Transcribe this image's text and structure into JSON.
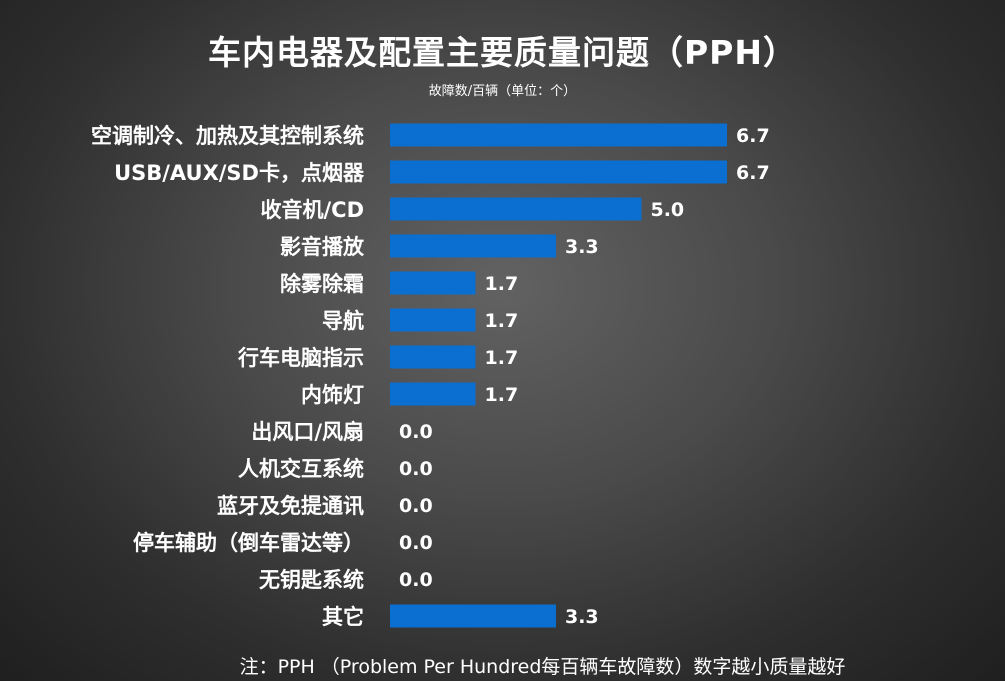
{
  "chart_data": {
    "type": "bar",
    "orientation": "horizontal",
    "title": "车内电器及配置主要质量问题（PPH）",
    "subtitle": "故障数/百辆（单位：个）",
    "categories": [
      "空调制冷、加热及其控制系统",
      "USB/AUX/SD卡，点烟器",
      "收音机/CD",
      "影音播放",
      "除雾除霜",
      "导航",
      "行车电脑指示",
      "内饰灯",
      "出风口/风扇",
      "人机交互系统",
      "蓝牙及免提通讯",
      "停车辅助（倒车雷达等）",
      "无钥匙系统",
      "其它"
    ],
    "values": [
      6.7,
      6.7,
      5.0,
      3.3,
      1.7,
      1.7,
      1.7,
      1.7,
      0.0,
      0.0,
      0.0,
      0.0,
      0.0,
      3.3
    ],
    "value_labels": [
      "6.7",
      "6.7",
      "5.0",
      "3.3",
      "1.7",
      "1.7",
      "1.7",
      "1.7",
      "0.0",
      "0.0",
      "0.0",
      "0.0",
      "0.0",
      "3.3"
    ],
    "xlim": [
      0,
      8
    ],
    "grid": false,
    "bar_color": "#0a6fd1",
    "note": "注：PPH （Problem Per Hundred每百辆车故障数）数字越小质量越好"
  }
}
